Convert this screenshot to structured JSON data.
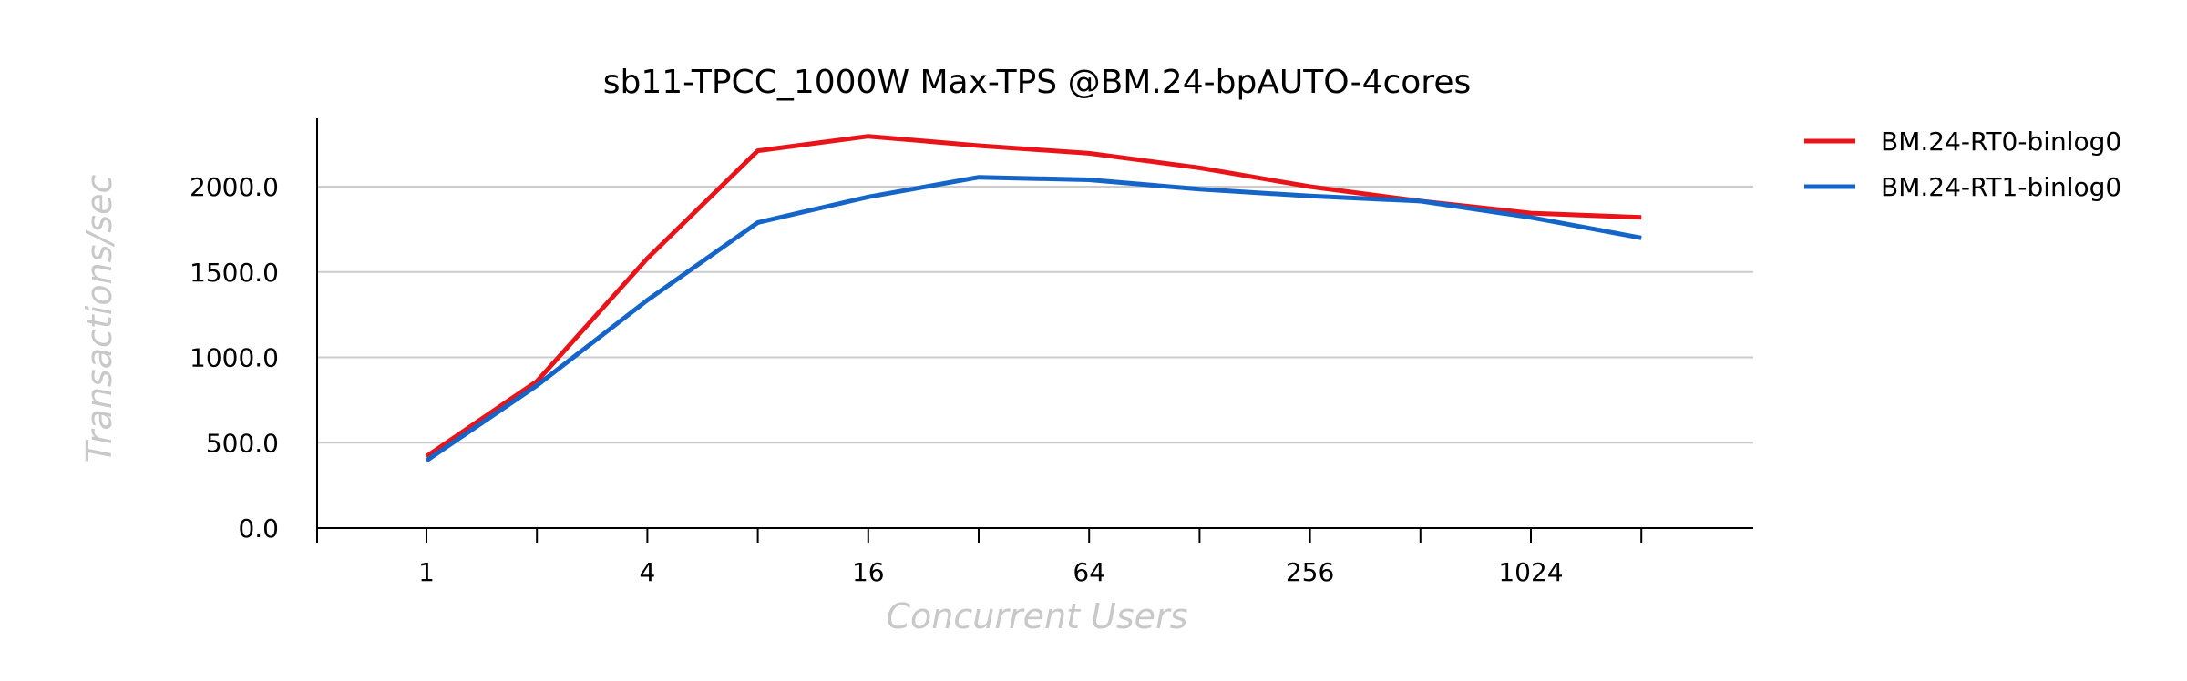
{
  "chart_data": {
    "type": "line",
    "title": "sb11-TPCC_1000W Max-TPS @BM.24-bpAUTO-4cores",
    "xlabel": "Concurrent Users",
    "ylabel": "Transactions/sec",
    "x_scale": "log2",
    "x": [
      1,
      2,
      4,
      8,
      16,
      32,
      64,
      128,
      256,
      512,
      1024,
      2048
    ],
    "x_tick_labels": [
      "1",
      "4",
      "16",
      "64",
      "256",
      "1024"
    ],
    "y_ticks": [
      "0.0",
      "500.0",
      "1000.0",
      "1500.0",
      "2000.0"
    ],
    "ylim": [
      0,
      2400
    ],
    "grid": "horizontal",
    "legend_position": "top-right outside",
    "series": [
      {
        "name": "BM.24-RT0-binlog0",
        "color": "#e8141a",
        "values": [
          420,
          860,
          1580,
          2210,
          2295,
          2240,
          2195,
          2110,
          2000,
          1915,
          1845,
          1820
        ]
      },
      {
        "name": "BM.24-RT1-binlog0",
        "color": "#1565c8",
        "values": [
          395,
          835,
          1335,
          1790,
          1940,
          2055,
          2040,
          1985,
          1945,
          1915,
          1820,
          1700
        ]
      }
    ]
  }
}
